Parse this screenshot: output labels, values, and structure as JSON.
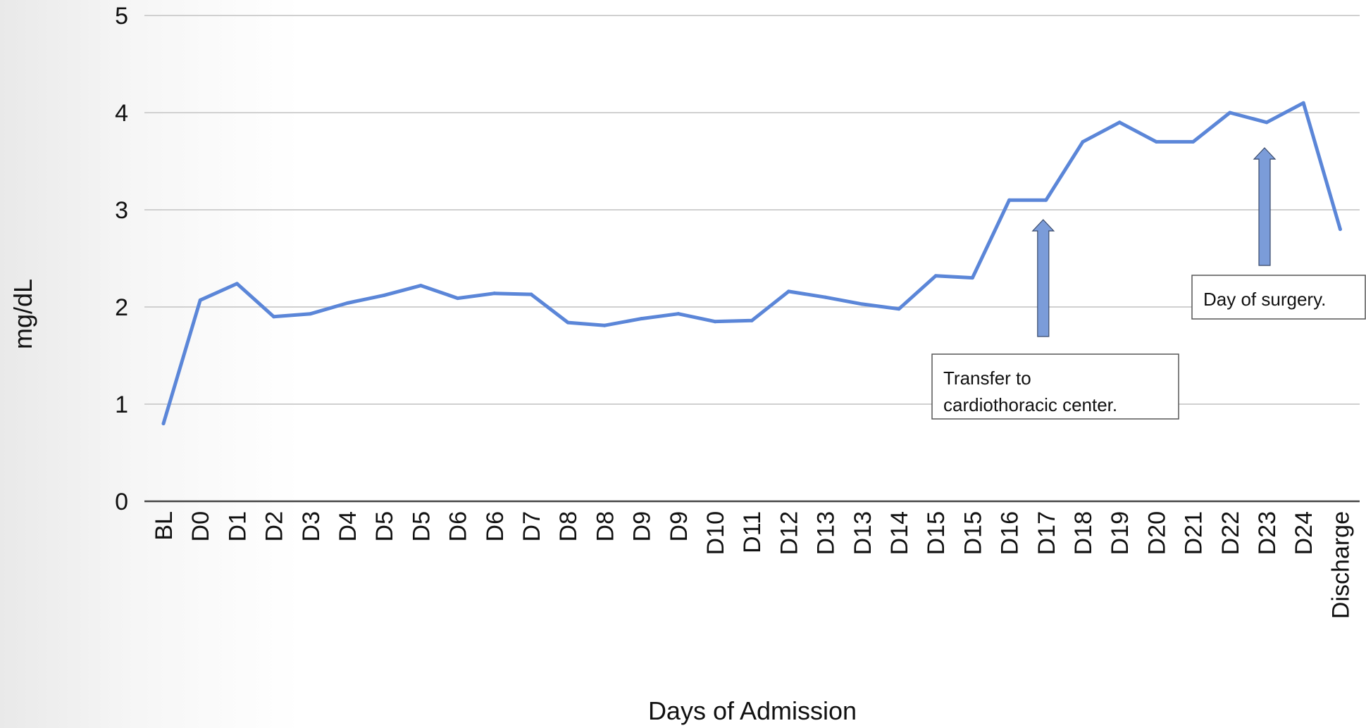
{
  "chart_data": {
    "type": "line",
    "title": "",
    "xlabel": "Days of Admission",
    "ylabel": "mg/dL",
    "ylim": [
      0,
      5
    ],
    "yticks": [
      0,
      1,
      2,
      3,
      4,
      5
    ],
    "grid": true,
    "legend": "none",
    "categories": [
      "BL",
      "D0",
      "D1",
      "D2",
      "D3",
      "D4",
      "D5",
      "D5",
      "D6",
      "D6",
      "D7",
      "D8",
      "D8",
      "D9",
      "D9",
      "D10",
      "D11",
      "D12",
      "D13",
      "D13",
      "D14",
      "D15",
      "D15",
      "D16",
      "D17",
      "D18",
      "D19",
      "D20",
      "D21",
      "D22",
      "D23",
      "D24",
      "Discharge"
    ],
    "series": [
      {
        "values": [
          0.8,
          2.07,
          2.24,
          1.9,
          1.93,
          2.04,
          2.12,
          2.22,
          2.09,
          2.14,
          2.13,
          1.84,
          1.81,
          1.88,
          1.93,
          1.85,
          1.86,
          2.16,
          2.1,
          2.03,
          1.98,
          2.32,
          2.3,
          3.1,
          3.1,
          3.7,
          3.9,
          3.7,
          3.7,
          4.0,
          3.9,
          4.1,
          2.8
        ]
      }
    ],
    "annotations": [
      {
        "text_lines": [
          "Transfer to",
          "cardiothoracic center."
        ],
        "category_index": 24
      },
      {
        "text_lines": [
          "Day of surgery."
        ],
        "category_index": 30
      }
    ],
    "colors": {
      "line": "#5b86d8",
      "arrow_fill": "#7b9cd9",
      "arrow_stroke": "#3a4a6a",
      "grid": "#d0d0d0",
      "axis": "#444444",
      "text": "#111111"
    }
  }
}
